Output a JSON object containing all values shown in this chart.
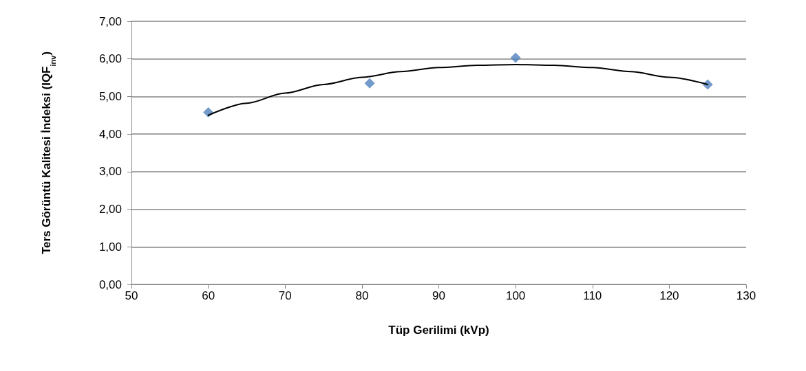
{
  "chart_data": {
    "type": "scatter",
    "xlabel": "Tüp Gerilimi (kVp)",
    "ylabel": "Ters Görüntü Kalitesi İndeksi (IQF$_{inv}$)",
    "xlim": [
      50,
      130
    ],
    "xticks": [
      50,
      60,
      70,
      80,
      90,
      100,
      110,
      120,
      130
    ],
    "ylim": [
      0,
      7
    ],
    "yticks": [
      {
        "value": 0,
        "label": "0,00"
      },
      {
        "value": 1,
        "label": "1,00"
      },
      {
        "value": 2,
        "label": "2,00"
      },
      {
        "value": 3,
        "label": "3,00"
      },
      {
        "value": 4,
        "label": "4,00"
      },
      {
        "value": 5,
        "label": "5,00"
      },
      {
        "value": 6,
        "label": "6,00"
      },
      {
        "value": 7,
        "label": "7,00"
      }
    ],
    "grid": "y",
    "marker": "diamond",
    "series": [
      {
        "color": "#4f81bd",
        "x": [
          60,
          81,
          100,
          125
        ],
        "values": [
          4.58,
          5.35,
          6.03,
          5.32
        ]
      },
      {
        "type": "line",
        "color": "#000000",
        "marker": "none",
        "line_style": "solid",
        "x": [
          60,
          65,
          70,
          75,
          80,
          85,
          90,
          95,
          100,
          105,
          110,
          115,
          120,
          125
        ],
        "values": [
          4.5,
          4.82,
          5.09,
          5.32,
          5.51,
          5.66,
          5.77,
          5.83,
          5.85,
          5.83,
          5.77,
          5.66,
          5.51,
          5.32
        ]
      }
    ]
  }
}
